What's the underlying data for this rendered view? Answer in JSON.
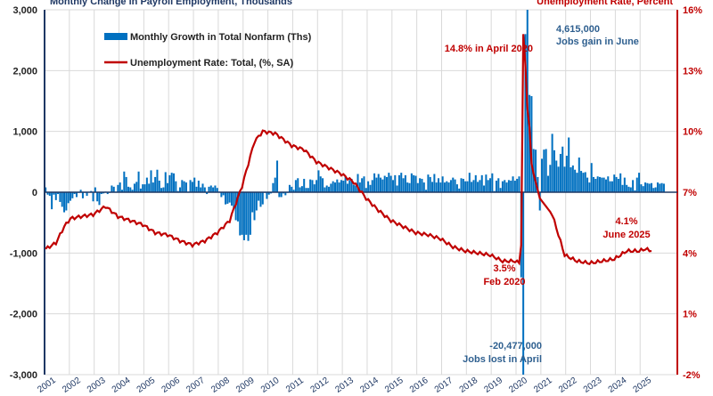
{
  "chart_data": {
    "type": "bar+line",
    "left_axis_title": "Monthly Change in Payroll Employment, Thousands",
    "right_axis_title": "Unemployment Rate, Percent",
    "left_ylim": [
      -3000,
      3000
    ],
    "left_ticks": [
      "3,000",
      "2,000",
      "1,000",
      "0",
      "-1,000",
      "-2,000",
      "-3,000"
    ],
    "right_ylim": [
      -2,
      16
    ],
    "right_ticks": [
      "16%",
      "13%",
      "10%",
      "7%",
      "4%",
      "1%",
      "-2%"
    ],
    "x_ticks": [
      "2001",
      "2002",
      "2003",
      "2004",
      "2005",
      "2006",
      "2007",
      "2008",
      "2009",
      "2010",
      "2011",
      "2012",
      "2013",
      "2014",
      "2015",
      "2016",
      "2017",
      "2018",
      "2019",
      "2020",
      "2021",
      "2022",
      "2023",
      "2024",
      "2025"
    ],
    "grid": true,
    "legend_position": "top-left",
    "colors": {
      "bars": "#0070c0",
      "line": "#c00000",
      "grid": "#d9d9d9"
    },
    "series": [
      {
        "name": "Monthly Growth in Total Nonfarm (Ths)",
        "type": "bar",
        "monthly_start": "2001-01",
        "values": [
          80,
          -40,
          -60,
          -280,
          -40,
          -130,
          -30,
          -160,
          -240,
          -330,
          -300,
          -180,
          -140,
          -100,
          -30,
          -80,
          -10,
          40,
          -100,
          -10,
          -60,
          0,
          20,
          -150,
          80,
          -150,
          -210,
          -30,
          -20,
          10,
          -30,
          -10,
          110,
          90,
          10,
          120,
          160,
          40,
          340,
          250,
          90,
          80,
          40,
          140,
          170,
          340,
          60,
          130,
          130,
          240,
          140,
          360,
          160,
          250,
          370,
          190,
          70,
          80,
          330,
          150,
          280,
          320,
          310,
          180,
          20,
          80,
          200,
          180,
          160,
          10,
          200,
          170,
          240,
          90,
          190,
          80,
          140,
          80,
          -30,
          90,
          110,
          80,
          110,
          70,
          10,
          -80,
          -50,
          -200,
          -190,
          -170,
          -220,
          -270,
          -460,
          -480,
          -710,
          -700,
          -790,
          -700,
          -800,
          -700,
          -330,
          -460,
          -300,
          -140,
          -240,
          -200,
          -10,
          -110,
          -40,
          -20,
          150,
          240,
          520,
          -80,
          -80,
          -20,
          -50,
          -10,
          120,
          90,
          40,
          200,
          230,
          80,
          100,
          220,
          70,
          70,
          210,
          200,
          130,
          200,
          360,
          260,
          230,
          80,
          110,
          90,
          140,
          180,
          160,
          210,
          160,
          200,
          190,
          260,
          140,
          200,
          220,
          120,
          110,
          300,
          160,
          230,
          260,
          70,
          180,
          120,
          200,
          310,
          240,
          300,
          240,
          210,
          270,
          250,
          320,
          270,
          200,
          280,
          110,
          280,
          320,
          230,
          280,
          160,
          150,
          310,
          280,
          270,
          150,
          230,
          220,
          160,
          40,
          290,
          250,
          170,
          300,
          160,
          230,
          160,
          260,
          160,
          180,
          160,
          200,
          240,
          210,
          130,
          60,
          230,
          220,
          180,
          180,
          320,
          170,
          200,
          280,
          170,
          200,
          280,
          110,
          290,
          200,
          230,
          310,
          20,
          190,
          230,
          70,
          180,
          200,
          160,
          200,
          190,
          260,
          190,
          220,
          260,
          -1400,
          -20477,
          2600,
          4615,
          1600,
          1580,
          710,
          700,
          250,
          -300,
          550,
          700,
          710,
          270,
          450,
          960,
          690,
          520,
          420,
          630,
          750,
          420,
          600,
          900,
          410,
          440,
          370,
          320,
          570,
          350,
          320,
          330,
          240,
          160,
          480,
          250,
          220,
          260,
          250,
          240,
          240,
          210,
          260,
          180,
          180,
          290,
          250,
          220,
          310,
          120,
          240,
          120,
          90,
          80,
          200,
          30,
          240,
          320,
          130,
          100,
          160,
          150,
          140,
          150,
          70,
          80,
          160,
          140,
          150,
          140
        ]
      },
      {
        "name": "Unemployment Rate: Total, (%, SA)",
        "type": "line",
        "anchors": [
          [
            "2001-01",
            4.2
          ],
          [
            "2001-06",
            4.5
          ],
          [
            "2001-10",
            5.3
          ],
          [
            "2002-01",
            5.7
          ],
          [
            "2002-06",
            5.8
          ],
          [
            "2002-12",
            5.9
          ],
          [
            "2003-06",
            6.3
          ],
          [
            "2003-12",
            5.8
          ],
          [
            "2004-06",
            5.6
          ],
          [
            "2004-12",
            5.4
          ],
          [
            "2005-06",
            5.0
          ],
          [
            "2005-12",
            4.9
          ],
          [
            "2006-06",
            4.6
          ],
          [
            "2006-12",
            4.4
          ],
          [
            "2007-06",
            4.6
          ],
          [
            "2007-12",
            5.0
          ],
          [
            "2008-06",
            5.6
          ],
          [
            "2008-12",
            7.3
          ],
          [
            "2009-06",
            9.5
          ],
          [
            "2009-10",
            10.0
          ],
          [
            "2010-04",
            9.9
          ],
          [
            "2010-12",
            9.3
          ],
          [
            "2011-06",
            9.1
          ],
          [
            "2011-12",
            8.5
          ],
          [
            "2012-06",
            8.2
          ],
          [
            "2012-12",
            7.9
          ],
          [
            "2013-06",
            7.5
          ],
          [
            "2013-12",
            6.7
          ],
          [
            "2014-06",
            6.1
          ],
          [
            "2014-12",
            5.6
          ],
          [
            "2015-06",
            5.3
          ],
          [
            "2015-12",
            5.0
          ],
          [
            "2016-06",
            4.9
          ],
          [
            "2016-12",
            4.7
          ],
          [
            "2017-06",
            4.3
          ],
          [
            "2017-12",
            4.1
          ],
          [
            "2018-06",
            4.0
          ],
          [
            "2018-12",
            3.9
          ],
          [
            "2019-06",
            3.6
          ],
          [
            "2019-12",
            3.6
          ],
          [
            "2020-02",
            3.5
          ],
          [
            "2020-03",
            4.4
          ],
          [
            "2020-04",
            14.8
          ],
          [
            "2020-05",
            13.3
          ],
          [
            "2020-06",
            11.1
          ],
          [
            "2020-07",
            10.2
          ],
          [
            "2020-08",
            8.4
          ],
          [
            "2020-09",
            7.9
          ],
          [
            "2020-12",
            6.7
          ],
          [
            "2021-06",
            5.9
          ],
          [
            "2021-12",
            3.9
          ],
          [
            "2022-06",
            3.6
          ],
          [
            "2022-12",
            3.5
          ],
          [
            "2023-06",
            3.6
          ],
          [
            "2023-12",
            3.7
          ],
          [
            "2024-06",
            4.1
          ],
          [
            "2024-12",
            4.1
          ],
          [
            "2025-03",
            4.2
          ],
          [
            "2025-06",
            4.1
          ]
        ]
      }
    ],
    "annotations": [
      {
        "text": "4,615,000",
        "color": "blue"
      },
      {
        "text": "Jobs gain in June",
        "color": "blue"
      },
      {
        "text": "14.8% in April 2020",
        "color": "red"
      },
      {
        "text": "3.5%",
        "color": "red"
      },
      {
        "text": "Feb 2020",
        "color": "red"
      },
      {
        "text": "-20,477,000",
        "color": "blue"
      },
      {
        "text": "Jobs lost in April",
        "color": "blue"
      },
      {
        "text": "4.1%",
        "color": "red"
      },
      {
        "text": "June 2025",
        "color": "red"
      }
    ]
  }
}
